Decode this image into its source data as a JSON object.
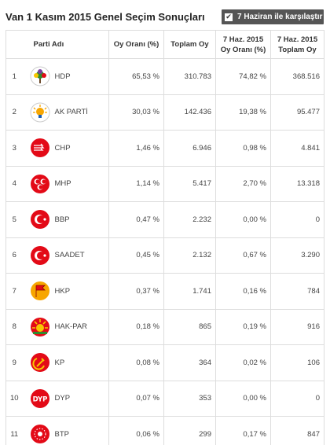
{
  "header": {
    "title": "Van 1 Kasım 2015 Genel Seçim Sonuçları",
    "compare_label": "7 Haziran ile karşılaştır",
    "compare_checked": true
  },
  "table": {
    "columns": {
      "party": "Parti Adı",
      "rate": "Oy Oranı (%)",
      "total": "Toplam Oy",
      "prev_rate_line1": "7 Haz. 2015",
      "prev_rate_line2": "Oy Oranı (%)",
      "prev_total_line1": "7 Haz. 2015",
      "prev_total_line2": "Toplam Oy"
    },
    "rows": [
      {
        "no": "1",
        "party": "HDP",
        "rate": "65,53 %",
        "total": "310.783",
        "prev_rate": "74,82 %",
        "prev_total": "368.516",
        "logo_color": "#2e8b2e",
        "logo_icon": "hdp-tree-icon"
      },
      {
        "no": "2",
        "party": "AK PARTİ",
        "rate": "30,03 %",
        "total": "142.436",
        "prev_rate": "19,38 %",
        "prev_total": "95.477",
        "logo_color": "#f7a600",
        "logo_icon": "akparti-bulb-icon"
      },
      {
        "no": "3",
        "party": "CHP",
        "rate": "1,46 %",
        "total": "6.946",
        "prev_rate": "0,98 %",
        "prev_total": "4.841",
        "logo_color": "#e30a17",
        "logo_icon": "chp-arrows-icon"
      },
      {
        "no": "4",
        "party": "MHP",
        "rate": "1,14 %",
        "total": "5.417",
        "prev_rate": "2,70 %",
        "prev_total": "13.318",
        "logo_color": "#e30a17",
        "logo_icon": "mhp-crescents-icon"
      },
      {
        "no": "5",
        "party": "BBP",
        "rate": "0,47 %",
        "total": "2.232",
        "prev_rate": "0,00 %",
        "prev_total": "0",
        "logo_color": "#e30a17",
        "logo_icon": "bbp-crescent-icon"
      },
      {
        "no": "6",
        "party": "SAADET",
        "rate": "0,45 %",
        "total": "2.132",
        "prev_rate": "0,67 %",
        "prev_total": "3.290",
        "logo_color": "#e30a17",
        "logo_icon": "saadet-crescent-icon"
      },
      {
        "no": "7",
        "party": "HKP",
        "rate": "0,37 %",
        "total": "1.741",
        "prev_rate": "0,16 %",
        "prev_total": "784",
        "logo_color": "#f7a600",
        "logo_icon": "hkp-flag-icon"
      },
      {
        "no": "8",
        "party": "HAK-PAR",
        "rate": "0,18 %",
        "total": "865",
        "prev_rate": "0,19 %",
        "prev_total": "916",
        "logo_color": "#f7c600",
        "logo_icon": "hakpar-sun-icon"
      },
      {
        "no": "9",
        "party": "KP",
        "rate": "0,08 %",
        "total": "364",
        "prev_rate": "0,02 %",
        "prev_total": "106",
        "logo_color": "#e30a17",
        "logo_icon": "kp-hammer-sickle-icon"
      },
      {
        "no": "10",
        "party": "DYP",
        "rate": "0,07 %",
        "total": "353",
        "prev_rate": "0,00 %",
        "prev_total": "0",
        "logo_color": "#e30a17",
        "logo_icon": "dyp-text-icon",
        "logo_text": "DYP"
      },
      {
        "no": "11",
        "party": "BTP",
        "rate": "0,06 %",
        "total": "299",
        "prev_rate": "0,17 %",
        "prev_total": "847",
        "logo_color": "#e30a17",
        "logo_icon": "btp-stars-icon"
      }
    ]
  }
}
